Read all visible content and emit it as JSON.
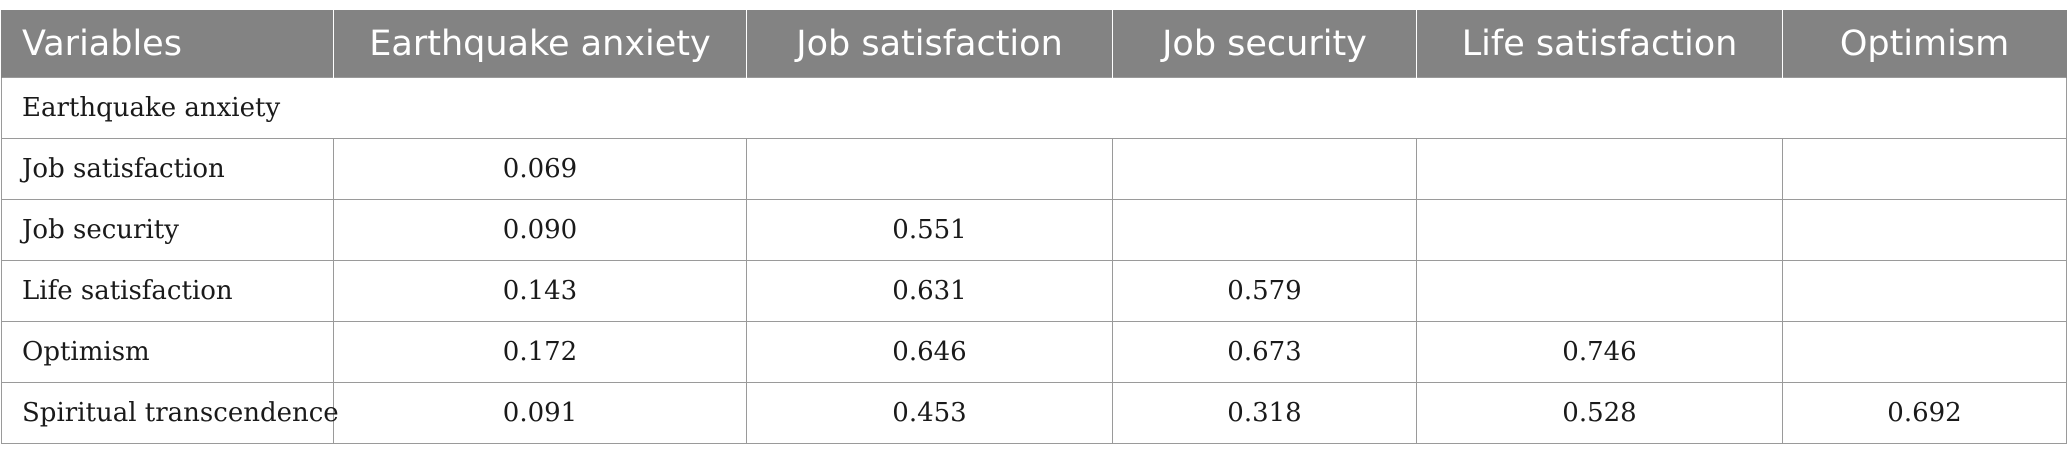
{
  "table": {
    "headers": [
      "Variables",
      "Earthquake anxiety",
      "Job satisfaction",
      "Job security",
      "Life satisfaction",
      "Optimism"
    ],
    "rows": [
      {
        "label": "Earthquake anxiety",
        "values": []
      },
      {
        "label": "Job satisfaction",
        "values": [
          "0.069",
          "",
          "",
          "",
          ""
        ]
      },
      {
        "label": "Job security",
        "values": [
          "0.090",
          "0.551",
          "",
          "",
          ""
        ]
      },
      {
        "label": "Life satisfaction",
        "values": [
          "0.143",
          "0.631",
          "0.579",
          "",
          ""
        ]
      },
      {
        "label": "Optimism",
        "values": [
          "0.172",
          "0.646",
          "0.673",
          "0.746",
          ""
        ]
      },
      {
        "label": "Spiritual transcendence",
        "values": [
          "0.091",
          "0.453",
          "0.318",
          "0.528",
          "0.692"
        ]
      }
    ]
  },
  "colors": {
    "header_background": "#838383",
    "header_text": "#ffffff",
    "grid_line": "#9a9a9a"
  }
}
